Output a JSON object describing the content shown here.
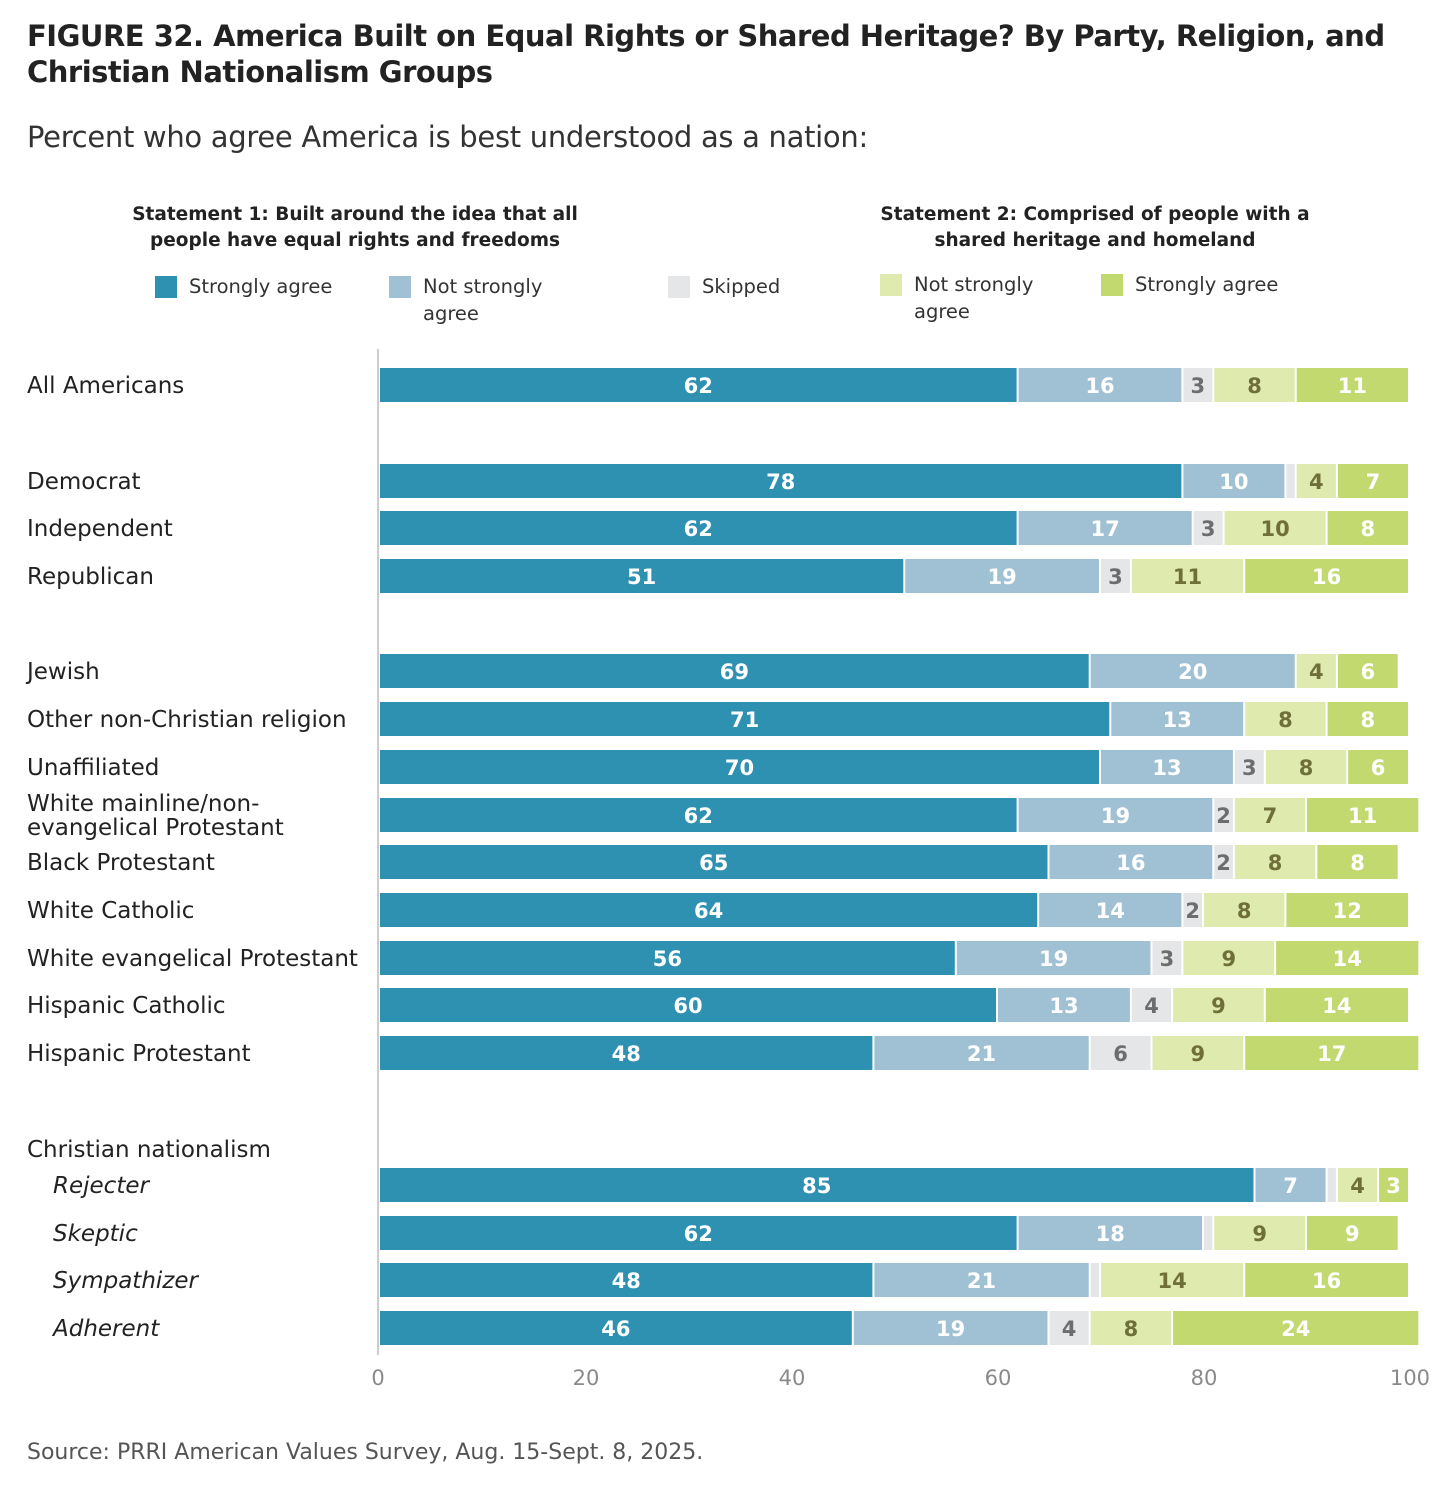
{
  "title": "FIGURE 32.  America Built on Equal Rights or Shared Heritage? By Party, Religion, and Christian Nationalism Groups",
  "subtitle": "Percent who agree America is best understood as a nation:",
  "statement1": "Statement 1: Built around the idea that all people have equal rights and freedoms",
  "statement2": "Statement 2: Comprised of people with a shared heritage and homeland",
  "source": "Source: PRRI American Values Survey, Aug. 15-Sept. 8, 2025.",
  "colors": {
    "s1_strong": "#2f91b1",
    "s1_notstrong": "#a0c0d3",
    "skipped": "#e4e6e7",
    "s2_notstrong": "#deeaae",
    "s2_strong": "#c2d970"
  },
  "legend": [
    {
      "label_lines": [
        "Strongly agree"
      ],
      "color_key": "s1_strong"
    },
    {
      "label_lines": [
        "Not strongly",
        "agree"
      ],
      "color_key": "s1_notstrong"
    },
    {
      "label_lines": [
        "Skipped"
      ],
      "color_key": "skipped"
    },
    {
      "label_lines": [
        "Not strongly",
        "agree"
      ],
      "color_key": "s2_notstrong"
    },
    {
      "label_lines": [
        "Strongly agree"
      ],
      "color_key": "s2_strong"
    }
  ],
  "chart_data": {
    "type": "bar",
    "orientation": "horizontal",
    "stacked": true,
    "xlim": [
      0,
      100
    ],
    "xticks": [
      0,
      20,
      40,
      60,
      80,
      100
    ],
    "series_names": [
      "Strongly agree",
      "Not strongly agree",
      "Skipped",
      "Not strongly agree",
      "Strongly agree"
    ],
    "group_labels": [
      "Christian nationalism"
    ],
    "rows": [
      {
        "label": "All Americans",
        "values": [
          62,
          16,
          3,
          8,
          11
        ],
        "labels_shown": [
          "62",
          "16",
          "3",
          "8",
          "11"
        ]
      },
      {
        "label": "Democrat",
        "values": [
          78,
          10,
          1,
          4,
          7
        ],
        "labels_shown": [
          "78",
          "10",
          "",
          "4",
          "7"
        ]
      },
      {
        "label": "Independent",
        "values": [
          62,
          17,
          3,
          10,
          8
        ],
        "labels_shown": [
          "62",
          "17",
          "3",
          "10",
          "8"
        ]
      },
      {
        "label": "Republican",
        "values": [
          51,
          19,
          3,
          11,
          16
        ],
        "labels_shown": [
          "51",
          "19",
          "3",
          "11",
          "16"
        ]
      },
      {
        "label": "Jewish",
        "values": [
          69,
          20,
          0,
          4,
          6
        ],
        "labels_shown": [
          "69",
          "20",
          "",
          "4",
          "6"
        ]
      },
      {
        "label": "Other non-Christian religion",
        "values": [
          71,
          13,
          0,
          8,
          8
        ],
        "labels_shown": [
          "71",
          "13",
          "",
          "8",
          "8"
        ]
      },
      {
        "label": "Unaffiliated",
        "values": [
          70,
          13,
          3,
          8,
          6
        ],
        "labels_shown": [
          "70",
          "13",
          "3",
          "8",
          "6"
        ]
      },
      {
        "label": "White mainline/non-evangelical Protestant",
        "label_lines": [
          "White mainline/non-",
          "evangelical Protestant"
        ],
        "values": [
          62,
          19,
          2,
          7,
          11
        ],
        "labels_shown": [
          "62",
          "19",
          "2",
          "7",
          "11"
        ]
      },
      {
        "label": "Black Protestant",
        "values": [
          65,
          16,
          2,
          8,
          8
        ],
        "labels_shown": [
          "65",
          "16",
          "2",
          "8",
          "8"
        ]
      },
      {
        "label": "White Catholic",
        "values": [
          64,
          14,
          2,
          8,
          12
        ],
        "labels_shown": [
          "64",
          "14",
          "2",
          "8",
          "12"
        ]
      },
      {
        "label": "White evangelical Protestant",
        "values": [
          56,
          19,
          3,
          9,
          14
        ],
        "labels_shown": [
          "56",
          "19",
          "3",
          "9",
          "14"
        ]
      },
      {
        "label": "Hispanic Catholic",
        "values": [
          60,
          13,
          4,
          9,
          14
        ],
        "labels_shown": [
          "60",
          "13",
          "4",
          "9",
          "14"
        ]
      },
      {
        "label": "Hispanic Protestant",
        "values": [
          48,
          21,
          6,
          9,
          17
        ],
        "labels_shown": [
          "48",
          "21",
          "6",
          "9",
          "17"
        ]
      },
      {
        "label": "Rejecter",
        "italic": true,
        "values": [
          85,
          7,
          1,
          4,
          3
        ],
        "labels_shown": [
          "85",
          "7",
          "",
          "4",
          "3"
        ]
      },
      {
        "label": "Skeptic",
        "italic": true,
        "values": [
          62,
          18,
          1,
          9,
          9
        ],
        "labels_shown": [
          "62",
          "18",
          "",
          "9",
          "9"
        ]
      },
      {
        "label": "Sympathizer",
        "italic": true,
        "values": [
          48,
          21,
          1,
          14,
          16
        ],
        "labels_shown": [
          "48",
          "21",
          "",
          "14",
          "16"
        ]
      },
      {
        "label": "Adherent",
        "italic": true,
        "values": [
          46,
          19,
          4,
          8,
          24
        ],
        "labels_shown": [
          "46",
          "19",
          "4",
          "8",
          "24"
        ]
      }
    ]
  }
}
